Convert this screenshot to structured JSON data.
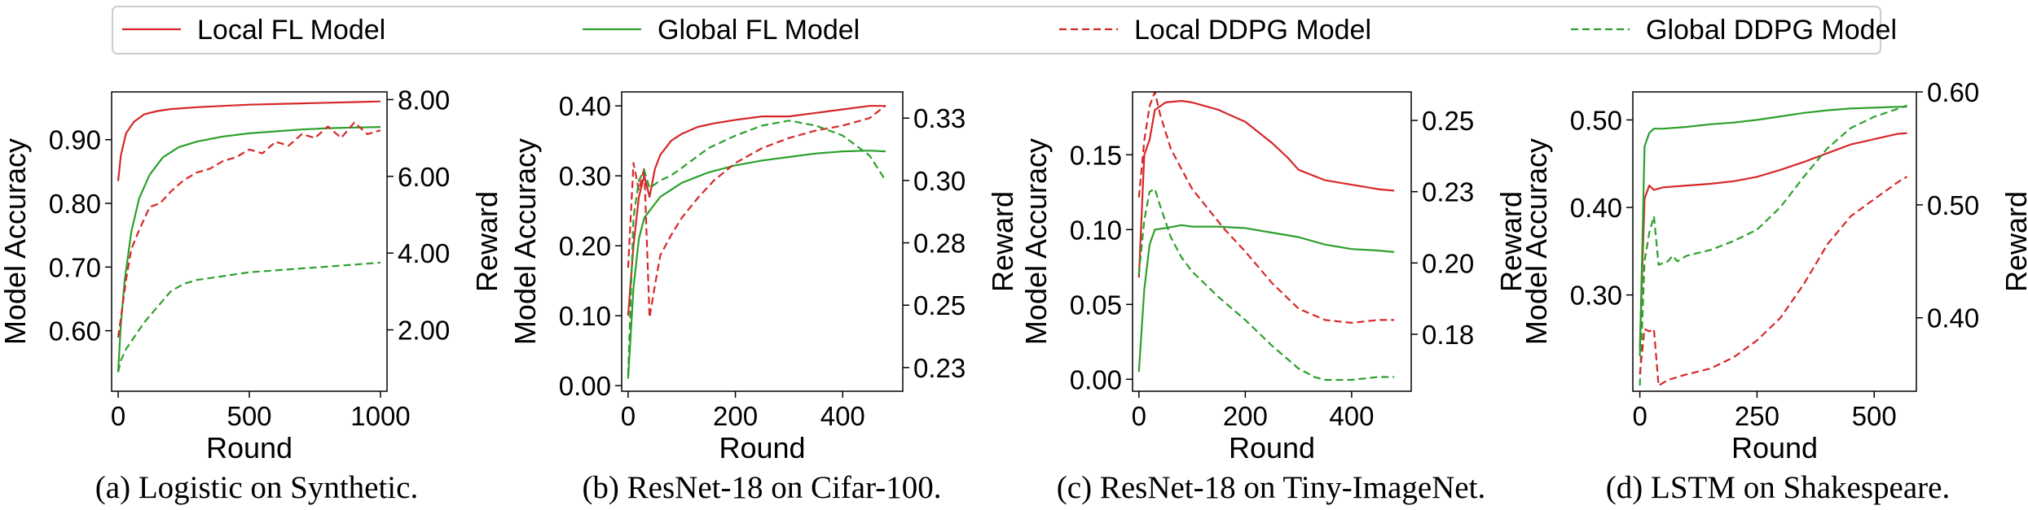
{
  "legend": [
    {
      "label": "Local FL Model",
      "color": "#d62728",
      "dash": "solid"
    },
    {
      "label": "Global FL Model",
      "color": "#2ca02c",
      "dash": "solid"
    },
    {
      "label": "Local DDPG Model",
      "color": "#d62728",
      "dash": "dashed"
    },
    {
      "label": "Global DDPG Model",
      "color": "#2ca02c",
      "dash": "dashed"
    }
  ],
  "colors": {
    "local": "#d62728",
    "global": "#2ca02c"
  },
  "chart_data": [
    {
      "type": "line",
      "caption": "(a) Logistic on Synthetic.",
      "xlabel": "Round",
      "ylabel": "Model Accuracy",
      "y2label": "Reward",
      "xlim": [
        -25,
        1025
      ],
      "ylim": [
        0.505,
        0.975
      ],
      "y2lim": [
        0.4,
        8.2
      ],
      "xticks": [
        0,
        500,
        1000
      ],
      "xtick_labels": [
        "0",
        "500",
        "1000"
      ],
      "yticks": [
        0.6,
        0.7,
        0.8,
        0.9
      ],
      "ytick_labels": [
        "0.60",
        "0.70",
        "0.80",
        "0.90"
      ],
      "y2ticks": [
        2,
        4,
        6,
        8
      ],
      "y2tick_labels": [
        "2.00",
        "4.00",
        "6.00",
        "8.00"
      ],
      "series": [
        {
          "name": "Local FL Model",
          "axis": "left",
          "style": "solid",
          "color": "local",
          "x": [
            0,
            10,
            30,
            60,
            100,
            150,
            200,
            300,
            400,
            500,
            600,
            700,
            800,
            900,
            1000
          ],
          "y": [
            0.835,
            0.875,
            0.91,
            0.928,
            0.94,
            0.945,
            0.948,
            0.951,
            0.953,
            0.955,
            0.956,
            0.957,
            0.958,
            0.959,
            0.96
          ]
        },
        {
          "name": "Global FL Model",
          "axis": "left",
          "style": "solid",
          "color": "global",
          "x": [
            0,
            10,
            25,
            50,
            80,
            120,
            170,
            230,
            300,
            400,
            500,
            600,
            700,
            800,
            900,
            1000
          ],
          "y": [
            0.535,
            0.61,
            0.68,
            0.755,
            0.808,
            0.845,
            0.872,
            0.888,
            0.897,
            0.905,
            0.91,
            0.913,
            0.916,
            0.918,
            0.919,
            0.92
          ]
        },
        {
          "name": "Local DDPG Model",
          "axis": "right",
          "style": "dashed",
          "color": "local",
          "x": [
            0,
            10,
            30,
            50,
            80,
            120,
            160,
            200,
            250,
            300,
            350,
            400,
            450,
            500,
            550,
            600,
            650,
            700,
            750,
            800,
            850,
            900,
            950,
            1000
          ],
          "y": [
            1.8,
            2.3,
            3.3,
            4.1,
            4.6,
            5.2,
            5.3,
            5.6,
            5.9,
            6.1,
            6.2,
            6.4,
            6.5,
            6.7,
            6.6,
            6.9,
            6.8,
            7.1,
            7.0,
            7.3,
            7.0,
            7.4,
            7.1,
            7.2
          ]
        },
        {
          "name": "Global DDPG Model",
          "axis": "right",
          "style": "dashed",
          "color": "global",
          "x": [
            0,
            10,
            30,
            60,
            100,
            150,
            200,
            250,
            300,
            400,
            500,
            600,
            700,
            800,
            900,
            1000
          ],
          "y": [
            0.9,
            1.2,
            1.5,
            1.8,
            2.2,
            2.6,
            3.0,
            3.2,
            3.3,
            3.4,
            3.5,
            3.55,
            3.6,
            3.65,
            3.7,
            3.75
          ]
        }
      ]
    },
    {
      "type": "line",
      "caption": "(b) ResNet-18 on Cifar-100.",
      "xlabel": "Round",
      "ylabel": "Model Accuracy",
      "y2label": "Reward",
      "xlim": [
        -12,
        512
      ],
      "ylim": [
        -0.008,
        0.42
      ],
      "y2lim": [
        0.2155,
        0.3355
      ],
      "xticks": [
        0,
        200,
        400
      ],
      "xtick_labels": [
        "0",
        "200",
        "400"
      ],
      "yticks": [
        0.0,
        0.1,
        0.2,
        0.3,
        0.4
      ],
      "ytick_labels": [
        "0.00",
        "0.10",
        "0.20",
        "0.30",
        "0.40"
      ],
      "y2ticks": [
        0.225,
        0.25,
        0.275,
        0.3,
        0.325
      ],
      "y2tick_labels": [
        "0.23",
        "0.25",
        "0.28",
        "0.30",
        "0.33"
      ],
      "series": [
        {
          "name": "Local FL Model",
          "axis": "left",
          "style": "solid",
          "color": "local",
          "x": [
            0,
            10,
            20,
            30,
            40,
            50,
            60,
            80,
            100,
            130,
            160,
            200,
            250,
            300,
            350,
            400,
            450,
            480
          ],
          "y": [
            0.1,
            0.2,
            0.27,
            0.3,
            0.27,
            0.31,
            0.33,
            0.35,
            0.36,
            0.37,
            0.375,
            0.38,
            0.385,
            0.385,
            0.39,
            0.395,
            0.4,
            0.4
          ]
        },
        {
          "name": "Global FL Model",
          "axis": "left",
          "style": "solid",
          "color": "global",
          "x": [
            0,
            10,
            20,
            30,
            40,
            60,
            80,
            100,
            150,
            200,
            250,
            300,
            350,
            400,
            450,
            480
          ],
          "y": [
            0.01,
            0.14,
            0.21,
            0.24,
            0.25,
            0.27,
            0.28,
            0.29,
            0.305,
            0.315,
            0.322,
            0.327,
            0.332,
            0.335,
            0.336,
            0.335
          ]
        },
        {
          "name": "Local DDPG Model",
          "axis": "right",
          "style": "dashed",
          "color": "local",
          "x": [
            0,
            10,
            20,
            30,
            40,
            50,
            60,
            80,
            100,
            130,
            160,
            200,
            250,
            300,
            350,
            400,
            450,
            480
          ],
          "y": [
            0.265,
            0.307,
            0.296,
            0.305,
            0.245,
            0.258,
            0.27,
            0.278,
            0.285,
            0.293,
            0.3,
            0.307,
            0.313,
            0.317,
            0.32,
            0.322,
            0.325,
            0.33
          ]
        },
        {
          "name": "Global DDPG Model",
          "axis": "right",
          "style": "dashed",
          "color": "global",
          "x": [
            0,
            10,
            20,
            30,
            40,
            60,
            80,
            100,
            150,
            200,
            250,
            300,
            350,
            400,
            450,
            480
          ],
          "y": [
            0.222,
            0.285,
            0.3,
            0.304,
            0.297,
            0.3,
            0.302,
            0.305,
            0.313,
            0.318,
            0.322,
            0.324,
            0.322,
            0.318,
            0.31,
            0.3
          ]
        }
      ]
    },
    {
      "type": "line",
      "caption": "(c) ResNet-18 on Tiny-ImageNet.",
      "xlabel": "Round",
      "ylabel": "Model Accuracy",
      "y2label": "Reward",
      "xlim": [
        -12,
        512
      ],
      "ylim": [
        -0.008,
        0.192
      ],
      "y2lim": [
        0.155,
        0.26
      ],
      "xticks": [
        0,
        200,
        400
      ],
      "xtick_labels": [
        "0",
        "200",
        "400"
      ],
      "yticks": [
        0.0,
        0.05,
        0.1,
        0.15
      ],
      "ytick_labels": [
        "0.00",
        "0.05",
        "0.10",
        "0.15"
      ],
      "y2ticks": [
        0.175,
        0.2,
        0.225,
        0.25
      ],
      "y2tick_labels": [
        "0.18",
        "0.20",
        "0.23",
        "0.25"
      ],
      "series": [
        {
          "name": "Local FL Model",
          "axis": "left",
          "style": "solid",
          "color": "local",
          "x": [
            0,
            10,
            20,
            30,
            50,
            80,
            100,
            150,
            200,
            250,
            280,
            300,
            350,
            400,
            450,
            480
          ],
          "y": [
            0.068,
            0.15,
            0.16,
            0.18,
            0.185,
            0.186,
            0.185,
            0.18,
            0.172,
            0.158,
            0.148,
            0.14,
            0.133,
            0.13,
            0.127,
            0.126
          ]
        },
        {
          "name": "Global FL Model",
          "axis": "left",
          "style": "solid",
          "color": "global",
          "x": [
            0,
            10,
            20,
            30,
            50,
            80,
            100,
            150,
            200,
            250,
            300,
            350,
            400,
            450,
            480
          ],
          "y": [
            0.005,
            0.06,
            0.09,
            0.1,
            0.101,
            0.103,
            0.102,
            0.102,
            0.101,
            0.098,
            0.095,
            0.09,
            0.087,
            0.086,
            0.085
          ]
        },
        {
          "name": "Local DDPG Model",
          "axis": "right",
          "style": "dashed",
          "color": "local",
          "x": [
            0,
            10,
            20,
            30,
            40,
            60,
            80,
            100,
            130,
            160,
            200,
            250,
            300,
            350,
            400,
            450,
            480
          ],
          "y": [
            0.223,
            0.243,
            0.255,
            0.26,
            0.252,
            0.24,
            0.233,
            0.226,
            0.219,
            0.212,
            0.204,
            0.193,
            0.184,
            0.18,
            0.179,
            0.18,
            0.18
          ]
        },
        {
          "name": "Global DDPG Model",
          "axis": "right",
          "style": "dashed",
          "color": "global",
          "x": [
            0,
            10,
            20,
            30,
            40,
            60,
            80,
            100,
            150,
            200,
            250,
            300,
            330,
            350,
            400,
            450,
            480
          ],
          "y": [
            0.196,
            0.215,
            0.225,
            0.226,
            0.22,
            0.209,
            0.202,
            0.197,
            0.188,
            0.18,
            0.171,
            0.163,
            0.16,
            0.159,
            0.159,
            0.16,
            0.16
          ]
        }
      ]
    },
    {
      "type": "line",
      "caption": "(d) LSTM on Shakespeare.",
      "xlabel": "Round",
      "ylabel": "Model Accuracy",
      "y2label": "Reward",
      "xlim": [
        -15,
        590
      ],
      "ylim": [
        0.19,
        0.532
      ],
      "y2lim": [
        0.335,
        0.6
      ],
      "xticks": [
        0,
        250,
        500
      ],
      "xtick_labels": [
        "0",
        "250",
        "500"
      ],
      "yticks": [
        0.3,
        0.4,
        0.5
      ],
      "ytick_labels": [
        "0.30",
        "0.40",
        "0.50"
      ],
      "y2ticks": [
        0.4,
        0.5,
        0.6
      ],
      "y2tick_labels": [
        "0.40",
        "0.50",
        "0.60"
      ],
      "series": [
        {
          "name": "Local FL Model",
          "axis": "left",
          "style": "solid",
          "color": "local",
          "x": [
            0,
            10,
            20,
            30,
            50,
            100,
            150,
            200,
            250,
            300,
            350,
            400,
            450,
            500,
            550,
            570
          ],
          "y": [
            0.24,
            0.41,
            0.425,
            0.42,
            0.423,
            0.425,
            0.427,
            0.43,
            0.435,
            0.443,
            0.452,
            0.462,
            0.472,
            0.478,
            0.484,
            0.485
          ]
        },
        {
          "name": "Global FL Model",
          "axis": "left",
          "style": "solid",
          "color": "global",
          "x": [
            0,
            10,
            20,
            30,
            50,
            100,
            150,
            200,
            250,
            300,
            350,
            400,
            450,
            500,
            550,
            570
          ],
          "y": [
            0.23,
            0.47,
            0.485,
            0.49,
            0.49,
            0.492,
            0.495,
            0.497,
            0.5,
            0.504,
            0.508,
            0.511,
            0.513,
            0.514,
            0.515,
            0.515
          ]
        },
        {
          "name": "Global DDPG Model",
          "axis": "right",
          "style": "dashed",
          "color": "global",
          "x": [
            0,
            10,
            20,
            30,
            40,
            60,
            70,
            80,
            100,
            150,
            200,
            250,
            300,
            350,
            400,
            450,
            500,
            550,
            570
          ],
          "y": [
            0.34,
            0.45,
            0.475,
            0.49,
            0.447,
            0.45,
            0.455,
            0.45,
            0.455,
            0.46,
            0.468,
            0.478,
            0.498,
            0.525,
            0.55,
            0.568,
            0.578,
            0.585,
            0.588
          ]
        },
        {
          "name": "Local DDPG Model",
          "axis": "right",
          "style": "dashed",
          "color": "local",
          "x": [
            0,
            10,
            20,
            30,
            40,
            60,
            100,
            150,
            200,
            250,
            300,
            350,
            400,
            450,
            500,
            550,
            570
          ],
          "y": [
            0.35,
            0.39,
            0.388,
            0.39,
            0.34,
            0.345,
            0.35,
            0.355,
            0.365,
            0.38,
            0.4,
            0.43,
            0.465,
            0.49,
            0.505,
            0.52,
            0.525
          ]
        }
      ]
    }
  ]
}
